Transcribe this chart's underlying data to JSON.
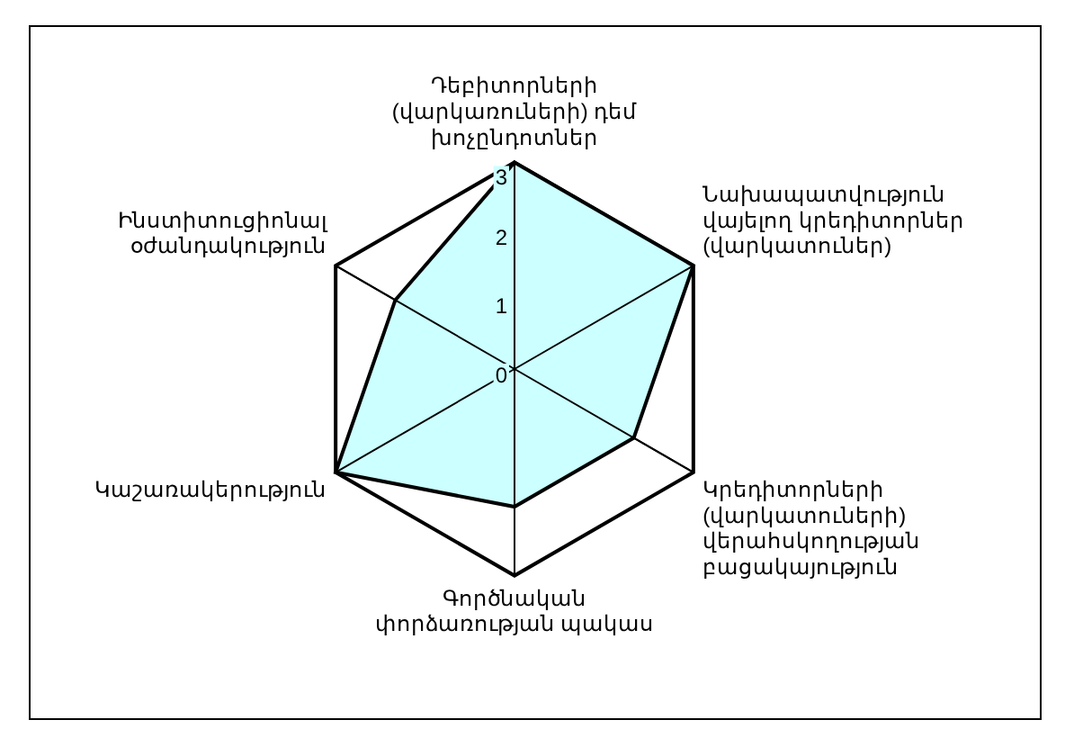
{
  "chart_data": {
    "type": "radar",
    "categories": [
      "Դեբիտորների\n(վարկառուների) դեմ\nխոչընդոտներ",
      "Նախապատվություն\nվայելող կրեդիտորներ\n(վարկատուներ)",
      "Կրեդիտորների\n(վարկատուների)\nվերահսկողության\nբացակայություն",
      "Գործնական\nփորձառության պակաս",
      "Կաշառակերություն",
      "Ինստիտուցիոնալ\nօժանդակություն"
    ],
    "series": [
      {
        "color": "#ccffff",
        "values": [
          3,
          3,
          2,
          2,
          3,
          2
        ]
      }
    ],
    "ylim": [
      0,
      3
    ],
    "yticks": [
      0,
      1,
      2,
      3
    ],
    "legend": false,
    "marker": "none"
  }
}
